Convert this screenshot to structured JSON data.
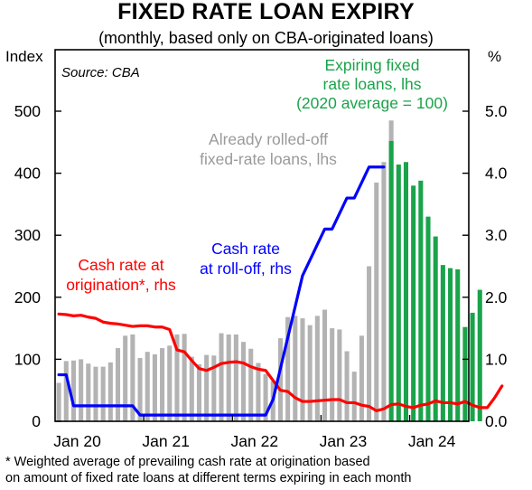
{
  "title": "FIXED RATE LOAN EXPIRY",
  "subtitle": "(monthly, based only on CBA-originated loans)",
  "footnote_line1": "*   Weighted average of prevailing cash rate at origination based",
  "footnote_line2": "on amount of fixed rate loans at different terms expiring in each month",
  "chart_data": {
    "type": "bar",
    "ylabel_left": "Index",
    "ylabel_right": "%",
    "ylim_left": [
      0,
      500
    ],
    "ylim_right": [
      0,
      5.0
    ],
    "yticks_left": [
      "0",
      "100",
      "200",
      "300",
      "400",
      "500"
    ],
    "yticks_right": [
      "0.0",
      "1.0",
      "2.0",
      "3.0",
      "4.0",
      "5.0"
    ],
    "xticks": [
      "Jan 20",
      "Jan 21",
      "Jan 22",
      "Jan 23",
      "Jan 24"
    ],
    "source": "Source: CBA",
    "annotations": {
      "expiring_fixed": [
        "Expiring fixed",
        "rate loans, lhs",
        "(2020 average = 100)"
      ],
      "rolled_off": [
        "Already rolled-off",
        "fixed-rate loans, lhs"
      ],
      "cash_rate_origination": [
        "Cash rate at",
        "origination*, rhs"
      ],
      "cash_rate_rolloff": [
        "Cash rate",
        "at roll-off, rhs"
      ]
    },
    "series": [
      {
        "name": "Already rolled-off fixed-rate loans, lhs",
        "axis": "left",
        "color": "#b3b3b3",
        "start": "2020-01",
        "values": [
          62,
          97,
          98,
          100,
          93,
          88,
          88,
          95,
          118,
          138,
          140,
          102,
          112,
          108,
          118,
          122,
          140,
          141,
          104,
          92,
          107,
          106,
          142,
          140,
          140,
          128,
          117,
          94,
          76,
          65,
          134,
          168,
          170,
          166,
          155,
          170,
          180,
          150,
          148,
          113,
          80,
          138,
          250,
          385,
          418,
          485
        ]
      },
      {
        "name": "Expiring fixed rate loans, lhs",
        "axis": "left",
        "color": "#1aa34a",
        "start": "2023-10",
        "values": [
          452,
          414,
          418,
          380,
          388,
          330,
          298,
          252,
          247,
          245,
          152,
          175,
          212
        ]
      },
      {
        "name": "Cash rate at origination*, rhs",
        "axis": "right",
        "color": "#ff0000",
        "start": "2020-01",
        "values": [
          1.73,
          1.72,
          1.7,
          1.71,
          1.68,
          1.66,
          1.6,
          1.58,
          1.57,
          1.55,
          1.53,
          1.54,
          1.54,
          1.52,
          1.52,
          1.48,
          1.15,
          1.12,
          0.98,
          0.85,
          0.82,
          0.87,
          0.93,
          0.95,
          0.96,
          0.94,
          0.88,
          0.84,
          0.82,
          0.66,
          0.5,
          0.48,
          0.38,
          0.32,
          0.32,
          0.33,
          0.34,
          0.35,
          0.35,
          0.3,
          0.3,
          0.26,
          0.24,
          0.17,
          0.2,
          0.27,
          0.28,
          0.24,
          0.22,
          0.26,
          0.28,
          0.33,
          0.3,
          0.3,
          0.28,
          0.32,
          0.26,
          0.22,
          0.22,
          0.38,
          0.57
        ]
      },
      {
        "name": "Cash rate at roll-off, rhs",
        "axis": "right",
        "color": "#0000ff",
        "start": "2020-01",
        "values": [
          0.75,
          0.75,
          0.25,
          0.25,
          0.25,
          0.25,
          0.25,
          0.25,
          0.25,
          0.25,
          0.25,
          0.1,
          0.1,
          0.1,
          0.1,
          0.1,
          0.1,
          0.1,
          0.1,
          0.1,
          0.1,
          0.1,
          0.1,
          0.1,
          0.1,
          0.1,
          0.1,
          0.1,
          0.1,
          0.35,
          0.85,
          1.35,
          1.85,
          2.35,
          2.6,
          2.85,
          3.1,
          3.1,
          3.35,
          3.6,
          3.6,
          3.85,
          4.1,
          4.1,
          4.1
        ]
      }
    ]
  }
}
